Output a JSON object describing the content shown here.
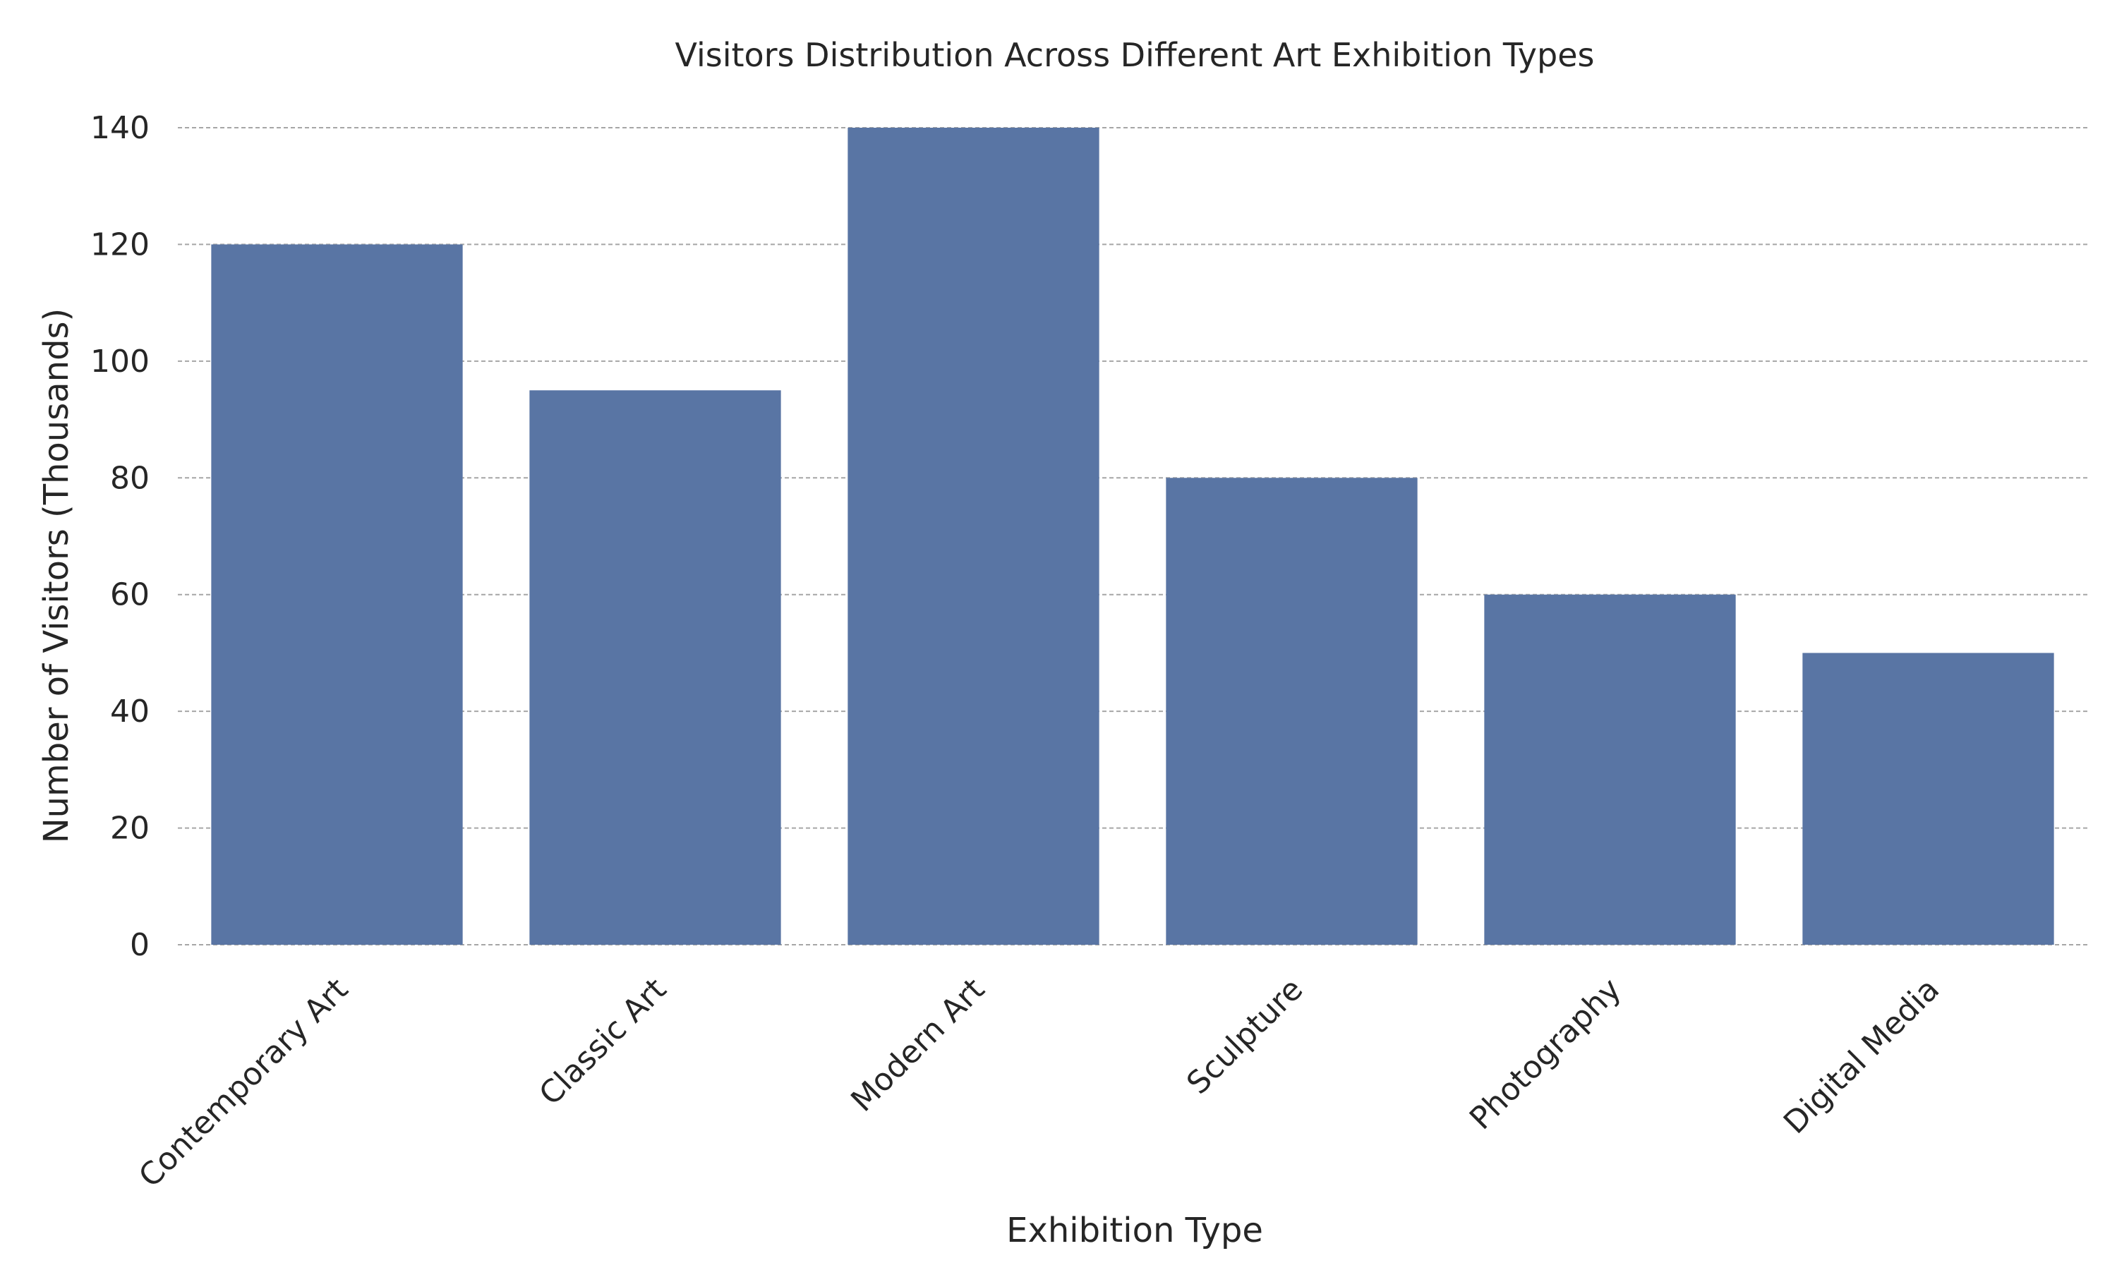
{
  "chart_data": {
    "type": "bar",
    "title": "Visitors Distribution Across Different Art Exhibition Types",
    "xlabel": "Exhibition Type",
    "ylabel": "Number of Visitors (Thousands)",
    "categories": [
      "Contemporary Art",
      "Classic Art",
      "Modern Art",
      "Sculpture",
      "Photography",
      "Digital Media"
    ],
    "values": [
      120,
      95,
      140,
      80,
      60,
      50
    ],
    "ylim": [
      0,
      140
    ],
    "yticks": [
      0,
      20,
      40,
      60,
      80,
      100,
      120,
      140
    ],
    "grid": true,
    "legend": "none",
    "colors": {
      "bar": "#5975a4",
      "grid": "#a6a6a6",
      "text": "#262626",
      "background": "#ffffff"
    }
  }
}
